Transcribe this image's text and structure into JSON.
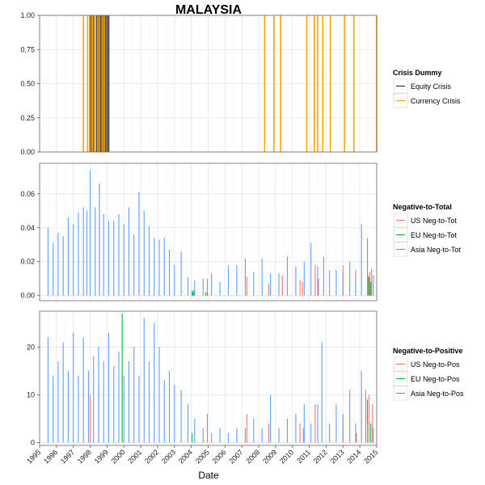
{
  "chart_data": {
    "type": "bar",
    "title": "MALAYSIA",
    "xlabel": "Date",
    "x_ticks": [
      "1995",
      "1996",
      "1997",
      "1998",
      "1999",
      "2000",
      "2001",
      "2002",
      "2003",
      "2004",
      "2005",
      "2006",
      "2007",
      "2008",
      "2009",
      "2010",
      "2011",
      "2012",
      "2013",
      "2014",
      "2015"
    ],
    "xlim": [
      1995,
      2015
    ],
    "grid": true,
    "legend_position": "right",
    "panels": [
      {
        "legend_title": "Crisis Dummy",
        "ylim": [
          0,
          1
        ],
        "y_ticks": [
          "0.00",
          "0.25",
          "0.50",
          "0.75",
          "1.00"
        ],
        "series": [
          {
            "name": "Equity Crisis",
            "color": "#333333",
            "x": [
              1998.0,
              1998.08,
              1998.18,
              1998.28,
              1998.4,
              1998.5,
              1998.6,
              1998.7,
              1998.8,
              1998.9,
              1999.0,
              1999.1
            ],
            "values": [
              1,
              1,
              1,
              1,
              1,
              1,
              1,
              1,
              1,
              1,
              1,
              1
            ]
          },
          {
            "name": "Currency Crisis",
            "color": "#FFA500",
            "x": [
              1997.6,
              1997.85,
              1998.05,
              1998.15,
              1998.3,
              1998.45,
              1998.55,
              1998.75,
              1998.85,
              2008.35,
              2008.9,
              2009.3,
              2010.85,
              2011.3,
              2011.5,
              2011.8,
              2012.25,
              2013.1,
              2013.65,
              2015.0
            ],
            "values": [
              1,
              1,
              1,
              1,
              1,
              1,
              1,
              1,
              1,
              1,
              1,
              1,
              1,
              1,
              1,
              1,
              1,
              1,
              1,
              1
            ]
          }
        ]
      },
      {
        "legend_title": "Negative-to-Total",
        "ylim": [
          -0.003,
          0.078
        ],
        "y_ticks": [
          "0.00",
          "0.02",
          "0.04",
          "0.06"
        ],
        "series": [
          {
            "name": "US Neg-to-Tot",
            "color": "#F8766D",
            "x": [
              2004.95,
              2007.3,
              2008.6,
              2009.4,
              2010.45,
              2010.6,
              2011.35,
              2011.55,
              2013.0,
              2013.75,
              2014.5,
              2014.6,
              2014.7
            ],
            "values": [
              0.01,
              0.011,
              0.007,
              0.012,
              0.009,
              0.008,
              0.018,
              0.01,
              0.018,
              0.015,
              0.012,
              0.014,
              0.016
            ]
          },
          {
            "name": "EU Neg-to-Tot",
            "color": "#00BA38",
            "x": [
              2004.05,
              2004.1,
              2004.15,
              2004.85,
              2004.95,
              2014.55,
              2014.65
            ],
            "values": [
              0.003,
              0.002,
              0.003,
              0.002,
              0.002,
              0.011,
              0.008
            ]
          },
          {
            "name": "Asia Neg-to-Tot",
            "color": "#619CFF",
            "x": [
              1995.5,
              1995.8,
              1996.1,
              1996.4,
              1996.7,
              1997.0,
              1997.3,
              1997.6,
              1997.8,
              1998.0,
              1998.3,
              1998.55,
              1998.8,
              1999.1,
              1999.4,
              1999.7,
              2000.0,
              2000.3,
              2000.6,
              2000.9,
              2001.2,
              2001.5,
              2001.8,
              2002.1,
              2002.4,
              2002.7,
              2003.0,
              2003.4,
              2003.8,
              2004.2,
              2004.7,
              2005.2,
              2005.7,
              2006.2,
              2006.7,
              2007.2,
              2007.7,
              2008.2,
              2008.7,
              2009.2,
              2009.7,
              2010.2,
              2010.7,
              2011.1,
              2011.5,
              2011.85,
              2012.2,
              2012.6,
              2013.0,
              2013.4,
              2013.75,
              2014.1,
              2014.45,
              2014.8
            ],
            "values": [
              0.04,
              0.031,
              0.037,
              0.035,
              0.046,
              0.042,
              0.049,
              0.052,
              0.05,
              0.074,
              0.052,
              0.066,
              0.048,
              0.044,
              0.044,
              0.048,
              0.042,
              0.052,
              0.036,
              0.061,
              0.05,
              0.041,
              0.034,
              0.033,
              0.034,
              0.027,
              0.018,
              0.026,
              0.011,
              0.009,
              0.01,
              0.013,
              0.008,
              0.018,
              0.018,
              0.022,
              0.014,
              0.022,
              0.013,
              0.013,
              0.023,
              0.017,
              0.02,
              0.031,
              0.017,
              0.023,
              0.015,
              0.015,
              0.013,
              0.02,
              0.01,
              0.042,
              0.034,
              0.012
            ]
          }
        ]
      },
      {
        "legend_title": "Negative-to-Positive",
        "ylim": [
          -0.6,
          27.5
        ],
        "y_ticks": [
          "0",
          "10",
          "20"
        ],
        "series": [
          {
            "name": "US Neg-to-Pos",
            "color": "#F8766D",
            "x": [
              1998.0,
              1998.5,
              2004.95,
              2007.3,
              2008.6,
              2010.45,
              2010.65,
              2011.35,
              2013.0,
              2013.8,
              2014.35,
              2014.55,
              2014.75
            ],
            "values": [
              10,
              12,
              6,
              6,
              4,
              4,
              3,
              8,
              5,
              2,
              11,
              10,
              8
            ]
          },
          {
            "name": "EU Neg-to-Pos",
            "color": "#00BA38",
            "x": [
              1999.9,
              2004.05,
              2014.45,
              2014.65
            ],
            "values": [
              27,
              2,
              9,
              4
            ]
          },
          {
            "name": "Asia Neg-to-Pos",
            "color": "#619CFF",
            "x": [
              1995.5,
              1995.8,
              1996.1,
              1996.4,
              1996.7,
              1997.0,
              1997.3,
              1997.6,
              1997.9,
              1998.2,
              1998.5,
              1998.8,
              1999.1,
              1999.4,
              1999.7,
              2000.0,
              2000.3,
              2000.6,
              2000.9,
              2001.2,
              2001.5,
              2001.8,
              2002.1,
              2002.4,
              2002.7,
              2003.0,
              2003.4,
              2003.8,
              2004.2,
              2004.7,
              2005.2,
              2005.7,
              2006.2,
              2006.7,
              2007.2,
              2007.7,
              2008.2,
              2008.7,
              2009.2,
              2009.7,
              2010.2,
              2010.7,
              2011.1,
              2011.5,
              2011.75,
              2012.2,
              2012.6,
              2013.0,
              2013.4,
              2013.75,
              2014.1,
              2014.45,
              2014.8
            ],
            "values": [
              22,
              14,
              17,
              21,
              15,
              23,
              14,
              22,
              15,
              18,
              20,
              17,
              23,
              16,
              19,
              14,
              17,
              20,
              14,
              26,
              17,
              25,
              20,
              13,
              15,
              12,
              11,
              8,
              5,
              3,
              2,
              3,
              2,
              3,
              3,
              5,
              3,
              10,
              3,
              5,
              6,
              8,
              4,
              8,
              21,
              4,
              8,
              6,
              11,
              4,
              15,
              4,
              3
            ]
          }
        ]
      }
    ]
  }
}
